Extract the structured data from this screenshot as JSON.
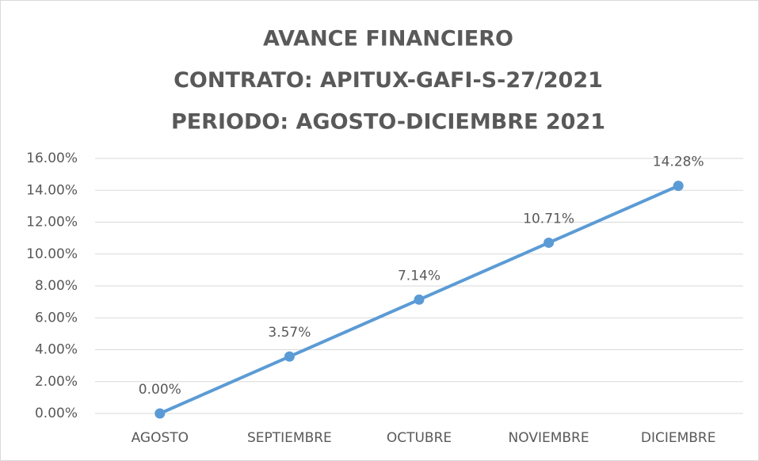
{
  "chart_data": {
    "type": "line",
    "title": [
      "AVANCE FINANCIERO",
      "CONTRATO: APITUX-GAFI-S-27/2021",
      "PERIODO: AGOSTO-DICIEMBRE 2021"
    ],
    "categories": [
      "AGOSTO",
      "SEPTIEMBRE",
      "OCTUBRE",
      "NOVIEMBRE",
      "DICIEMBRE"
    ],
    "series": [
      {
        "color": "#5b9bd5",
        "values": [
          0,
          3.57,
          7.14,
          10.71,
          14.28
        ],
        "value_labels": [
          "0.00%",
          "3.57%",
          "7.14%",
          "10.71%",
          "14.28%"
        ]
      }
    ],
    "ylim": [
      0,
      16
    ],
    "yticks": [
      {
        "value": 0,
        "label": "0.00%"
      },
      {
        "value": 2,
        "label": "2.00%"
      },
      {
        "value": 4,
        "label": "4.00%"
      },
      {
        "value": 6,
        "label": "6.00%"
      },
      {
        "value": 8,
        "label": "8.00%"
      },
      {
        "value": 10,
        "label": "10.00%"
      },
      {
        "value": 12,
        "label": "12.00%"
      },
      {
        "value": 14,
        "label": "14.00%"
      },
      {
        "value": 16,
        "label": "16.00%"
      }
    ],
    "grid": true
  }
}
